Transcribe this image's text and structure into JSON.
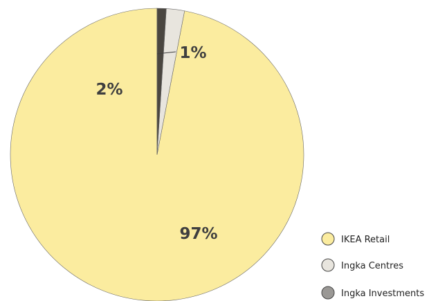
{
  "chart_data": {
    "type": "pie",
    "slices": [
      {
        "name": "IKEA Retail",
        "value": 97,
        "label": "97%",
        "color": "#FBEC9F"
      },
      {
        "name": "Ingka Centres",
        "value": 2,
        "label": "2%",
        "color": "#E8E5DE"
      },
      {
        "name": "Ingka Investments",
        "value": 1,
        "label": "1%",
        "color": "#4A4640"
      }
    ],
    "start_angle_deg": 0,
    "direction": "counterclockwise",
    "legend_position": "bottom-right"
  }
}
